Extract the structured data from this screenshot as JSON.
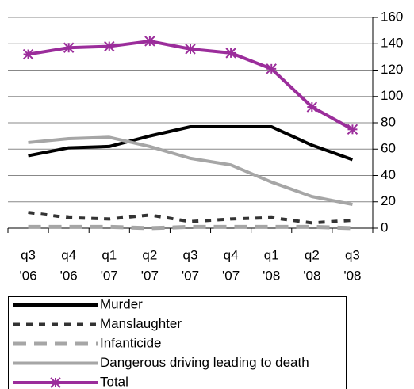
{
  "chart_data": {
    "type": "line",
    "categories": [
      [
        "q3",
        "'06"
      ],
      [
        "q4",
        "'06"
      ],
      [
        "q1",
        "'07"
      ],
      [
        "q2",
        "'07"
      ],
      [
        "q3",
        "'07"
      ],
      [
        "q4",
        "'07"
      ],
      [
        "q1",
        "'08"
      ],
      [
        "q2",
        "'08"
      ],
      [
        "q3",
        "'08"
      ]
    ],
    "series": [
      {
        "name": "Murder",
        "color": "#000000",
        "line_style": "solid",
        "values": [
          55,
          61,
          62,
          70,
          77,
          77,
          77,
          63,
          52
        ]
      },
      {
        "name": "Manslaughter",
        "color": "#333333",
        "line_style": "dashed",
        "values": [
          12,
          8,
          7,
          10,
          5,
          7,
          8,
          4,
          6
        ]
      },
      {
        "name": "Infanticide",
        "color": "#a6a6a6",
        "line_style": "long-dashed",
        "values": [
          1,
          1,
          1,
          0,
          1,
          1,
          1,
          1,
          0
        ]
      },
      {
        "name": "Dangerous driving leading to death",
        "color": "#a6a6a6",
        "line_style": "solid",
        "values": [
          65,
          68,
          69,
          62,
          53,
          48,
          35,
          24,
          18
        ]
      },
      {
        "name": "Total",
        "color": "#9b2d9b",
        "line_style": "solid",
        "marker": "star",
        "values": [
          132,
          137,
          138,
          142,
          136,
          133,
          121,
          92,
          75
        ]
      }
    ],
    "ylim": [
      0,
      160
    ],
    "yticks": [
      0,
      20,
      40,
      60,
      80,
      100,
      120,
      140,
      160
    ],
    "y_axis_side": "right",
    "grid": true,
    "legend": "bottom"
  }
}
